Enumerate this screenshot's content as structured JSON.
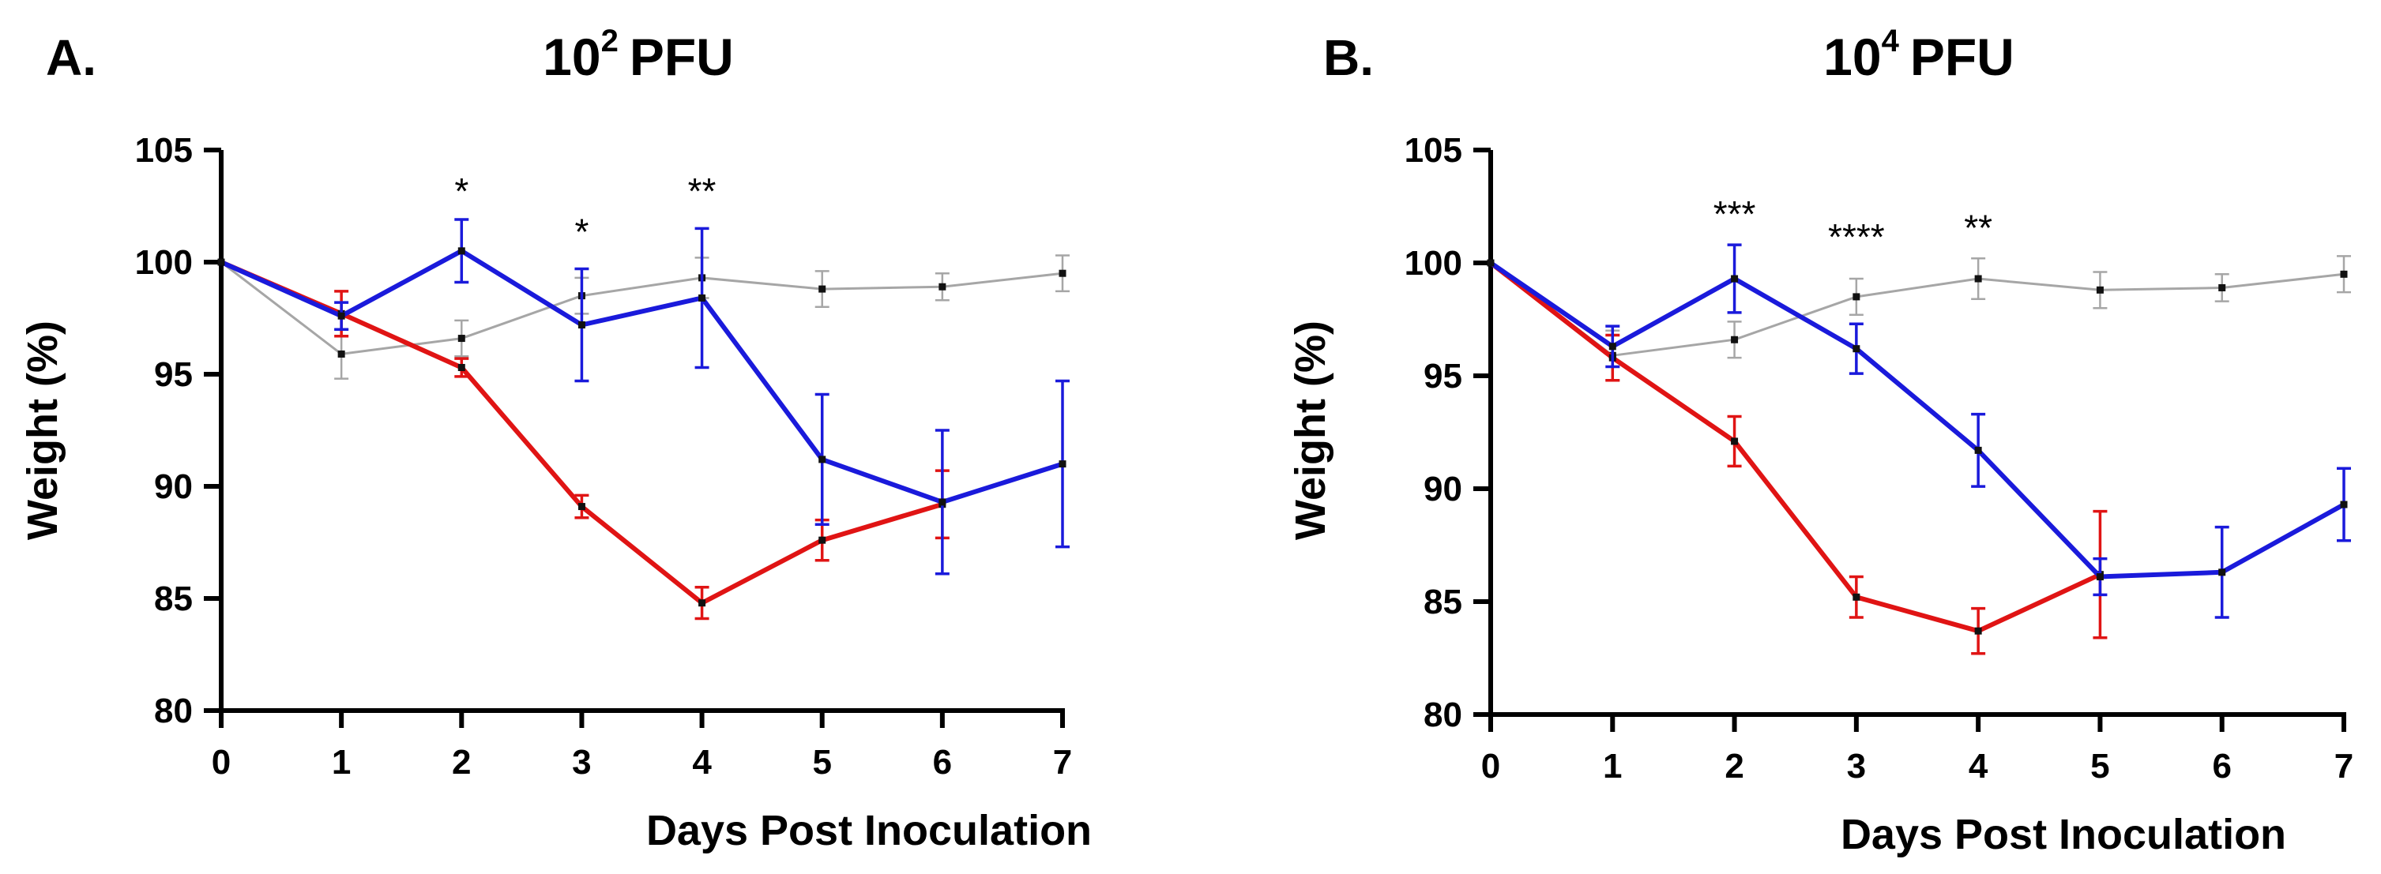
{
  "colors": {
    "gray": "#a6a6a6",
    "blue": "#1a1adb",
    "red": "#e01414",
    "axis": "#000000"
  },
  "chart_data": [
    {
      "type": "line",
      "panel_letter": "A.",
      "title_base": "10",
      "title_exp": "2",
      "title_unit": "PFU",
      "xlabel": "Days Post Inoculation",
      "ylabel": "Weight (%)",
      "xlim": [
        0,
        7
      ],
      "ylim": [
        80,
        105
      ],
      "xticks": [
        "0",
        "1",
        "2",
        "3",
        "4",
        "5",
        "6",
        "7"
      ],
      "yticks": [
        "80",
        "85",
        "90",
        "95",
        "100",
        "105"
      ],
      "x": [
        0,
        1,
        2,
        3,
        4,
        5,
        6,
        7
      ],
      "series": [
        {
          "color": "#a6a6a6",
          "width": 3,
          "values": [
            100,
            95.9,
            96.6,
            98.5,
            99.3,
            98.8,
            98.9,
            99.5
          ],
          "errors": [
            0,
            1.1,
            0.8,
            0.8,
            0.9,
            0.8,
            0.6,
            0.8
          ]
        },
        {
          "color": "#e01414",
          "width": 6,
          "values": [
            100,
            97.7,
            95.3,
            89.1,
            84.8,
            87.6,
            89.2,
            null
          ],
          "errors": [
            0,
            1.0,
            0.4,
            0.5,
            0.7,
            0.9,
            1.5,
            null
          ]
        },
        {
          "color": "#1a1adb",
          "width": 6,
          "values": [
            100,
            97.6,
            100.5,
            97.2,
            98.4,
            91.2,
            89.3,
            91.0
          ],
          "errors": [
            0,
            0.6,
            1.4,
            2.5,
            3.1,
            2.9,
            3.2,
            3.7
          ]
        }
      ],
      "annotations": [
        {
          "x": 2,
          "y": 102.6,
          "text": "*"
        },
        {
          "x": 3,
          "y": 100.8,
          "text": "*"
        },
        {
          "x": 4,
          "y": 102.6,
          "text": "**"
        }
      ]
    },
    {
      "type": "line",
      "panel_letter": "B.",
      "title_base": "10",
      "title_exp": "4",
      "title_unit": "PFU",
      "xlabel": "Days Post Inoculation",
      "ylabel": "Weight (%)",
      "xlim": [
        0,
        7
      ],
      "ylim": [
        80,
        105
      ],
      "xticks": [
        "0",
        "1",
        "2",
        "3",
        "4",
        "5",
        "6",
        "7"
      ],
      "yticks": [
        "80",
        "85",
        "90",
        "95",
        "100",
        "105"
      ],
      "x": [
        0,
        1,
        2,
        3,
        4,
        5,
        6,
        7
      ],
      "series": [
        {
          "color": "#a6a6a6",
          "width": 3,
          "values": [
            100,
            95.9,
            96.6,
            98.5,
            99.3,
            98.8,
            98.9,
            99.5
          ],
          "errors": [
            0,
            1.1,
            0.8,
            0.8,
            0.9,
            0.8,
            0.6,
            0.8
          ]
        },
        {
          "color": "#e01414",
          "width": 6,
          "values": [
            100,
            95.8,
            92.1,
            85.2,
            83.7,
            86.2,
            null,
            null
          ],
          "errors": [
            0,
            1.0,
            1.1,
            0.9,
            1.0,
            2.8,
            null,
            null
          ]
        },
        {
          "color": "#1a1adb",
          "width": 6,
          "values": [
            100,
            96.3,
            99.3,
            96.2,
            91.7,
            86.1,
            86.3,
            89.3
          ],
          "errors": [
            0,
            0.9,
            1.5,
            1.1,
            1.6,
            0.8,
            2.0,
            1.6
          ]
        }
      ],
      "annotations": [
        {
          "x": 2,
          "y": 101.6,
          "text": "***"
        },
        {
          "x": 3,
          "y": 100.6,
          "text": "****"
        },
        {
          "x": 4,
          "y": 101.0,
          "text": "**"
        }
      ]
    }
  ]
}
